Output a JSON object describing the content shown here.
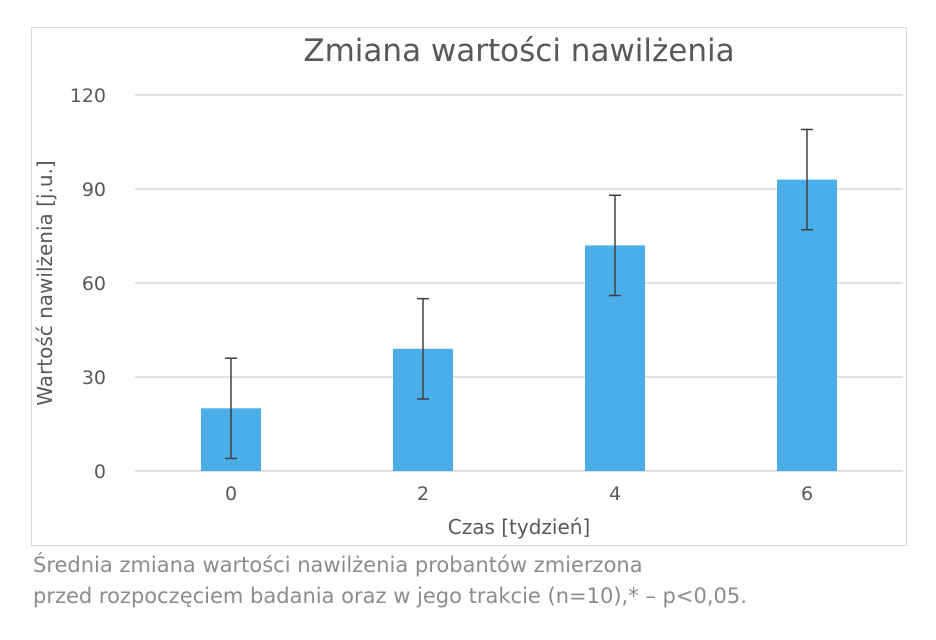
{
  "chart_data": {
    "type": "bar",
    "title": "Zmiana wartości nawilżenia",
    "xlabel": "Czas [tydzień]",
    "ylabel": "Wartość nawilżenia [j.u.]",
    "categories": [
      "0",
      "2",
      "4",
      "6"
    ],
    "values": [
      20,
      39,
      72,
      93
    ],
    "error_bars": [
      {
        "low": 4,
        "high": 36
      },
      {
        "low": 23,
        "high": 55
      },
      {
        "low": 56,
        "high": 88
      },
      {
        "low": 77,
        "high": 109
      }
    ],
    "ylim": [
      0,
      120
    ],
    "yticks": [
      0,
      30,
      60,
      90,
      120
    ],
    "grid": true,
    "colors": {
      "bar": "#4aaee8",
      "grid": "#d9d9d9",
      "text": "#595959",
      "error_bar": "#404040"
    }
  },
  "caption": {
    "line1": "Średnia zmiana wartości nawilżenia probantów zmierzona",
    "line2": "przed rozpoczęciem badania oraz w jego trakcie (n=10),* – p<0,05."
  }
}
